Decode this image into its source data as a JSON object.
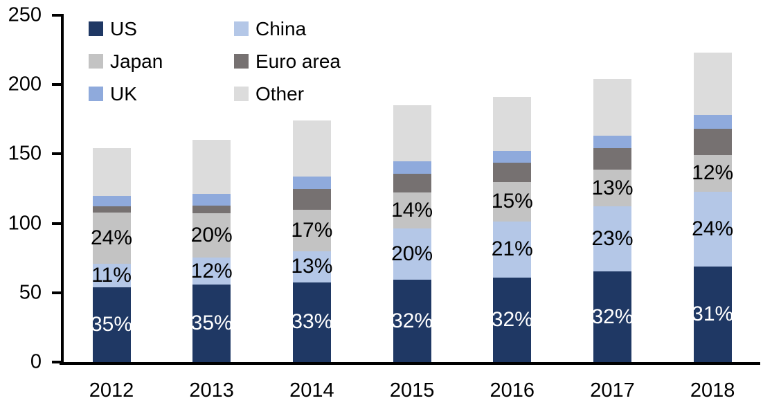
{
  "background": "#ffffff",
  "axis": {
    "color": "#000000"
  },
  "chart_data": {
    "type": "bar",
    "variant": "stacked-column",
    "title": "",
    "xlabel": "",
    "ylabel": "",
    "categories": [
      "2012",
      "2013",
      "2014",
      "2015",
      "2016",
      "2017",
      "2018"
    ],
    "series": [
      {
        "name": "US",
        "color": "#1f3864",
        "label_color": "#ffffff",
        "values": [
          54,
          56,
          57.4,
          59.2,
          61.1,
          65.3,
          69.1
        ],
        "labels": [
          "35%",
          "35%",
          "33%",
          "32%",
          "32%",
          "32%",
          "31%"
        ]
      },
      {
        "name": "China",
        "color": "#b4c7e7",
        "label_color": "#000000",
        "values": [
          17,
          19.2,
          22.6,
          37,
          40.1,
          46.9,
          53.5
        ],
        "labels": [
          "11%",
          "12%",
          "13%",
          "20%",
          "21%",
          "23%",
          "24%"
        ]
      },
      {
        "name": "Japan",
        "color": "#c3c3c3",
        "label_color": "#000000",
        "values": [
          37,
          32,
          29.6,
          25.9,
          28.7,
          26.5,
          26.8
        ],
        "labels": [
          "24%",
          "20%",
          "17%",
          "14%",
          "15%",
          "13%",
          "12%"
        ]
      },
      {
        "name": "Euro area",
        "color": "#767171",
        "values": [
          4.5,
          5.5,
          15,
          13.5,
          14,
          15.5,
          19
        ]
      },
      {
        "name": "UK",
        "color": "#8faadc",
        "values": [
          7.5,
          8.5,
          9,
          9,
          8.5,
          9,
          9.5
        ]
      },
      {
        "name": "Other",
        "color": "#dcdcdc",
        "values": [
          34,
          38.8,
          40.4,
          40.4,
          38.6,
          40.8,
          45.1
        ]
      }
    ],
    "totals": [
      154,
      160,
      174,
      185,
      191,
      204,
      223
    ],
    "ylim": [
      0,
      250
    ],
    "yticks": [
      0,
      50,
      100,
      150,
      200,
      250
    ],
    "grid": false,
    "legend_position": "top-left",
    "legend_items": [
      "US",
      "China",
      "Japan",
      "Euro area",
      "UK",
      "Other"
    ]
  }
}
